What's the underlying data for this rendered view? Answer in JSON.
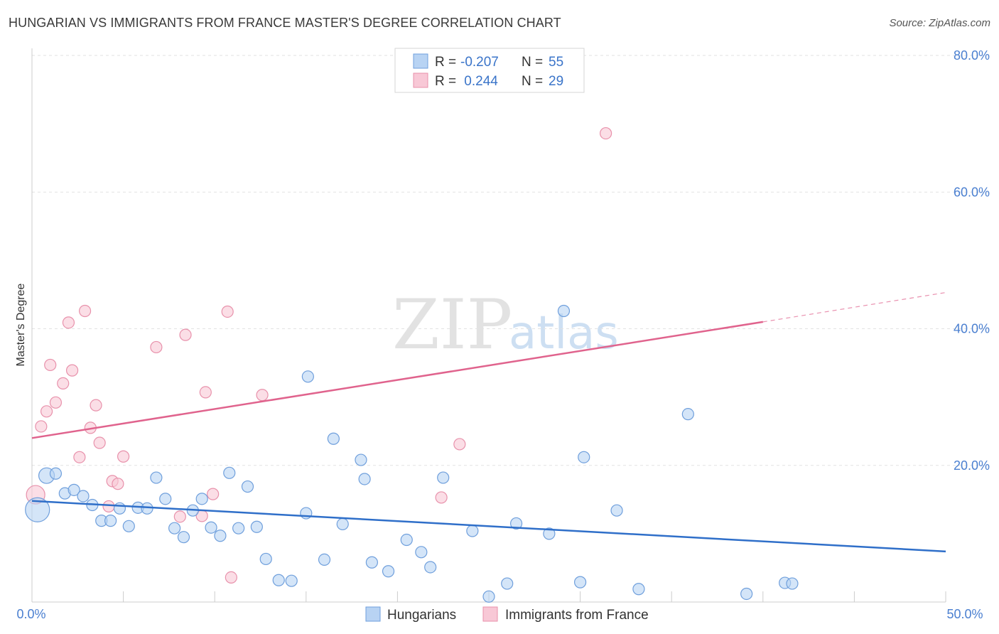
{
  "header": {
    "title": "HUNGARIAN VS IMMIGRANTS FROM FRANCE MASTER'S DEGREE CORRELATION CHART",
    "source": "Source: ZipAtlas.com"
  },
  "watermark": {
    "zip": "ZIP",
    "atlas": "atlas"
  },
  "colors": {
    "blue_fill": "#b8d3f3",
    "blue_stroke": "#6f9fdc",
    "blue_line": "#2f6fc9",
    "pink_fill": "#f8c8d6",
    "pink_stroke": "#e891ab",
    "pink_line": "#e0638d",
    "axis_text": "#4a7fd0"
  },
  "legend": {
    "rows": [
      {
        "r_label": "R =",
        "r_value": "-0.207",
        "n_label": "N =",
        "n_value": "55"
      },
      {
        "r_label": "R =",
        "r_value": " 0.244",
        "n_label": "N =",
        "n_value": "29"
      }
    ]
  },
  "chart_data": {
    "type": "scatter",
    "title": "HUNGARIAN VS IMMIGRANTS FROM FRANCE MASTER'S DEGREE CORRELATION CHART",
    "xlabel": "",
    "ylabel": "Master's Degree",
    "xlim": [
      0,
      50
    ],
    "ylim": [
      0,
      80
    ],
    "x_tick_labels": [
      "0.0%",
      "50.0%"
    ],
    "y_ticks": [
      20,
      40,
      60,
      80
    ],
    "y_tick_labels": [
      "20.0%",
      "40.0%",
      "60.0%",
      "80.0%"
    ],
    "grid": true,
    "legend_entries": [
      "Hungarians",
      "Immigrants from France"
    ],
    "series": [
      {
        "name": "Hungarians",
        "r": -0.207,
        "n": 55,
        "trend": {
          "x0": 0,
          "y0": 14.8,
          "x1": 50,
          "y1": 7.4
        },
        "points": [
          [
            0.3,
            13.5,
            17
          ],
          [
            0.8,
            18.5,
            11
          ],
          [
            1.3,
            18.8,
            8
          ],
          [
            1.8,
            15.9,
            8
          ],
          [
            2.3,
            16.4,
            8
          ],
          [
            2.8,
            15.5,
            8
          ],
          [
            3.3,
            14.2,
            8
          ],
          [
            3.8,
            11.9,
            8
          ],
          [
            4.3,
            11.9,
            8
          ],
          [
            4.8,
            13.7,
            8
          ],
          [
            5.3,
            11.1,
            8
          ],
          [
            5.8,
            13.8,
            8
          ],
          [
            6.3,
            13.7,
            8
          ],
          [
            6.8,
            18.2,
            8
          ],
          [
            7.3,
            15.1,
            8
          ],
          [
            7.8,
            10.8,
            8
          ],
          [
            8.3,
            9.5,
            8
          ],
          [
            8.8,
            13.4,
            8
          ],
          [
            9.3,
            15.1,
            8
          ],
          [
            9.8,
            10.9,
            8
          ],
          [
            10.3,
            9.7,
            8
          ],
          [
            10.8,
            18.9,
            8
          ],
          [
            11.3,
            10.8,
            8
          ],
          [
            11.8,
            16.9,
            8
          ],
          [
            12.3,
            11.0,
            8
          ],
          [
            12.8,
            6.3,
            8
          ],
          [
            13.5,
            3.2,
            8
          ],
          [
            14.2,
            3.1,
            8
          ],
          [
            15.0,
            13.0,
            8
          ],
          [
            15.1,
            33.0,
            8
          ],
          [
            16.0,
            6.2,
            8
          ],
          [
            16.5,
            23.9,
            8
          ],
          [
            17.0,
            11.4,
            8
          ],
          [
            18.0,
            20.8,
            8
          ],
          [
            18.2,
            18.0,
            8
          ],
          [
            18.6,
            5.8,
            8
          ],
          [
            19.5,
            4.5,
            8
          ],
          [
            20.5,
            9.1,
            8
          ],
          [
            21.3,
            7.3,
            8
          ],
          [
            21.8,
            5.1,
            8
          ],
          [
            22.5,
            18.2,
            8
          ],
          [
            24.1,
            10.4,
            8
          ],
          [
            25.0,
            0.8,
            8
          ],
          [
            26.0,
            2.7,
            8
          ],
          [
            26.5,
            11.5,
            8
          ],
          [
            28.3,
            10.0,
            8
          ],
          [
            29.1,
            42.6,
            8
          ],
          [
            30.0,
            2.9,
            8
          ],
          [
            30.2,
            21.2,
            8
          ],
          [
            32.0,
            13.4,
            8
          ],
          [
            33.2,
            1.9,
            8
          ],
          [
            35.9,
            27.5,
            8
          ],
          [
            39.1,
            1.2,
            8
          ],
          [
            41.2,
            2.8,
            8
          ],
          [
            41.6,
            2.7,
            8
          ]
        ]
      },
      {
        "name": "Immigrants from France",
        "r": 0.244,
        "n": 29,
        "trend": {
          "x0": 0,
          "y0": 24.0,
          "x1": 40,
          "y1": 41.0,
          "dash_x1": 50,
          "dash_y1": 45.3
        },
        "points": [
          [
            0.2,
            15.7,
            13
          ],
          [
            0.5,
            25.7,
            8
          ],
          [
            0.8,
            27.9,
            8
          ],
          [
            1.0,
            34.7,
            8
          ],
          [
            1.3,
            29.2,
            8
          ],
          [
            1.7,
            32.0,
            8
          ],
          [
            2.0,
            40.9,
            8
          ],
          [
            2.2,
            33.9,
            8
          ],
          [
            2.6,
            21.2,
            8
          ],
          [
            2.9,
            42.6,
            8
          ],
          [
            3.2,
            25.5,
            8
          ],
          [
            3.5,
            28.8,
            8
          ],
          [
            3.7,
            23.3,
            8
          ],
          [
            4.2,
            14.0,
            8
          ],
          [
            4.4,
            17.7,
            8
          ],
          [
            4.7,
            17.3,
            8
          ],
          [
            5.0,
            21.3,
            8
          ],
          [
            6.8,
            37.3,
            8
          ],
          [
            8.1,
            12.5,
            8
          ],
          [
            8.4,
            39.1,
            8
          ],
          [
            9.3,
            12.6,
            8
          ],
          [
            9.5,
            30.7,
            8
          ],
          [
            9.9,
            15.8,
            8
          ],
          [
            10.7,
            42.5,
            8
          ],
          [
            10.9,
            3.6,
            8
          ],
          [
            12.6,
            30.3,
            8
          ],
          [
            22.4,
            15.3,
            8
          ],
          [
            23.4,
            23.1,
            8
          ],
          [
            31.4,
            68.6,
            8
          ]
        ]
      }
    ]
  }
}
